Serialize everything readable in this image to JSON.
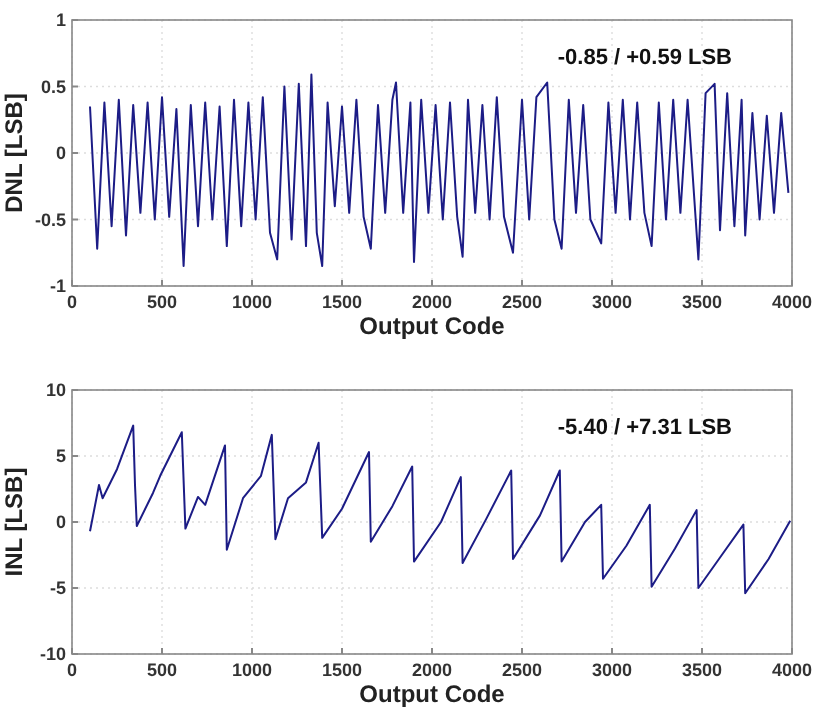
{
  "chart_data": [
    {
      "type": "line",
      "xlabel": "Output Code",
      "ylabel": "DNL [LSB]",
      "annotations": [
        "-0.85 / +0.59 LSB"
      ],
      "xlim": [
        0,
        4000
      ],
      "xticks": [
        0,
        500,
        1000,
        1500,
        2000,
        2500,
        3000,
        3500,
        4000
      ],
      "ylim": [
        -1,
        1
      ],
      "yticks": [
        -1,
        -0.5,
        0,
        0.5,
        1
      ],
      "grid": true,
      "marker": "none",
      "line_style": "solid",
      "series": [
        {
          "color": "#1c1c86",
          "x": [
            100,
            140,
            180,
            220,
            260,
            300,
            340,
            380,
            420,
            460,
            500,
            540,
            580,
            620,
            660,
            700,
            740,
            780,
            820,
            860,
            900,
            940,
            980,
            1020,
            1060,
            1100,
            1140,
            1180,
            1220,
            1260,
            1300,
            1330,
            1360,
            1390,
            1420,
            1460,
            1500,
            1540,
            1580,
            1620,
            1660,
            1700,
            1740,
            1780,
            1800,
            1840,
            1880,
            1900,
            1940,
            1980,
            2020,
            2060,
            2100,
            2140,
            2170,
            2200,
            2240,
            2280,
            2320,
            2360,
            2400,
            2450,
            2500,
            2540,
            2580,
            2640,
            2680,
            2720,
            2760,
            2800,
            2840,
            2880,
            2940,
            2980,
            3020,
            3060,
            3100,
            3140,
            3180,
            3220,
            3260,
            3300,
            3340,
            3380,
            3420,
            3480,
            3520,
            3570,
            3600,
            3640,
            3680,
            3720,
            3740,
            3780,
            3820,
            3860,
            3900,
            3940,
            3980
          ],
          "values": [
            0.35,
            -0.72,
            0.38,
            -0.55,
            0.4,
            -0.62,
            0.36,
            -0.45,
            0.38,
            -0.5,
            0.42,
            -0.48,
            0.33,
            -0.85,
            0.36,
            -0.55,
            0.38,
            -0.5,
            0.35,
            -0.7,
            0.4,
            -0.55,
            0.38,
            -0.5,
            0.42,
            -0.6,
            -0.8,
            0.5,
            -0.65,
            0.52,
            -0.7,
            0.59,
            -0.6,
            -0.85,
            0.38,
            -0.4,
            0.35,
            -0.45,
            0.4,
            -0.48,
            -0.72,
            0.36,
            -0.45,
            0.4,
            0.53,
            -0.45,
            0.38,
            -0.82,
            0.4,
            -0.45,
            0.36,
            -0.5,
            0.38,
            -0.48,
            -0.78,
            0.4,
            -0.45,
            0.36,
            -0.5,
            0.42,
            -0.48,
            -0.75,
            0.4,
            -0.5,
            0.42,
            0.53,
            -0.5,
            -0.72,
            0.4,
            -0.45,
            0.36,
            -0.5,
            -0.68,
            0.38,
            -0.45,
            0.4,
            -0.5,
            0.38,
            -0.45,
            -0.7,
            0.38,
            -0.5,
            0.4,
            -0.45,
            0.4,
            -0.8,
            0.45,
            0.52,
            -0.58,
            0.45,
            -0.55,
            0.4,
            -0.62,
            0.3,
            -0.5,
            0.28,
            -0.45,
            0.3,
            -0.3
          ]
        }
      ]
    },
    {
      "type": "line",
      "xlabel": "Output Code",
      "ylabel": "INL [LSB]",
      "annotations": [
        "-5.40 / +7.31 LSB"
      ],
      "xlim": [
        0,
        4000
      ],
      "xticks": [
        0,
        500,
        1000,
        1500,
        2000,
        2500,
        3000,
        3500,
        4000
      ],
      "ylim": [
        -10,
        10
      ],
      "yticks": [
        -10,
        -5,
        0,
        5,
        10
      ],
      "grid": true,
      "marker": "none",
      "line_style": "solid",
      "series": [
        {
          "color": "#1c1c86",
          "x": [
            100,
            150,
            170,
            250,
            340,
            350,
            360,
            450,
            490,
            610,
            630,
            700,
            740,
            850,
            860,
            950,
            1050,
            1110,
            1130,
            1200,
            1300,
            1370,
            1390,
            1500,
            1650,
            1660,
            1780,
            1890,
            1900,
            2050,
            2160,
            2170,
            2300,
            2440,
            2450,
            2600,
            2710,
            2720,
            2850,
            2940,
            2950,
            3080,
            3210,
            3220,
            3350,
            3470,
            3480,
            3610,
            3730,
            3740,
            3870,
            3990
          ],
          "values": [
            -0.7,
            2.8,
            1.8,
            4.0,
            7.3,
            2.8,
            -0.3,
            2.2,
            3.5,
            6.8,
            -0.5,
            1.9,
            1.3,
            5.8,
            -2.1,
            1.8,
            3.5,
            6.6,
            -1.3,
            1.8,
            3.0,
            6.0,
            -1.2,
            1.0,
            5.3,
            -1.5,
            1.2,
            4.2,
            -3.0,
            0.0,
            3.4,
            -3.1,
            0.2,
            3.9,
            -2.8,
            0.5,
            3.9,
            -3.0,
            0.0,
            1.3,
            -4.3,
            -1.8,
            1.3,
            -4.9,
            -2.0,
            0.9,
            -5.0,
            -2.5,
            -0.2,
            -5.4,
            -2.8,
            0.1
          ]
        }
      ]
    }
  ]
}
